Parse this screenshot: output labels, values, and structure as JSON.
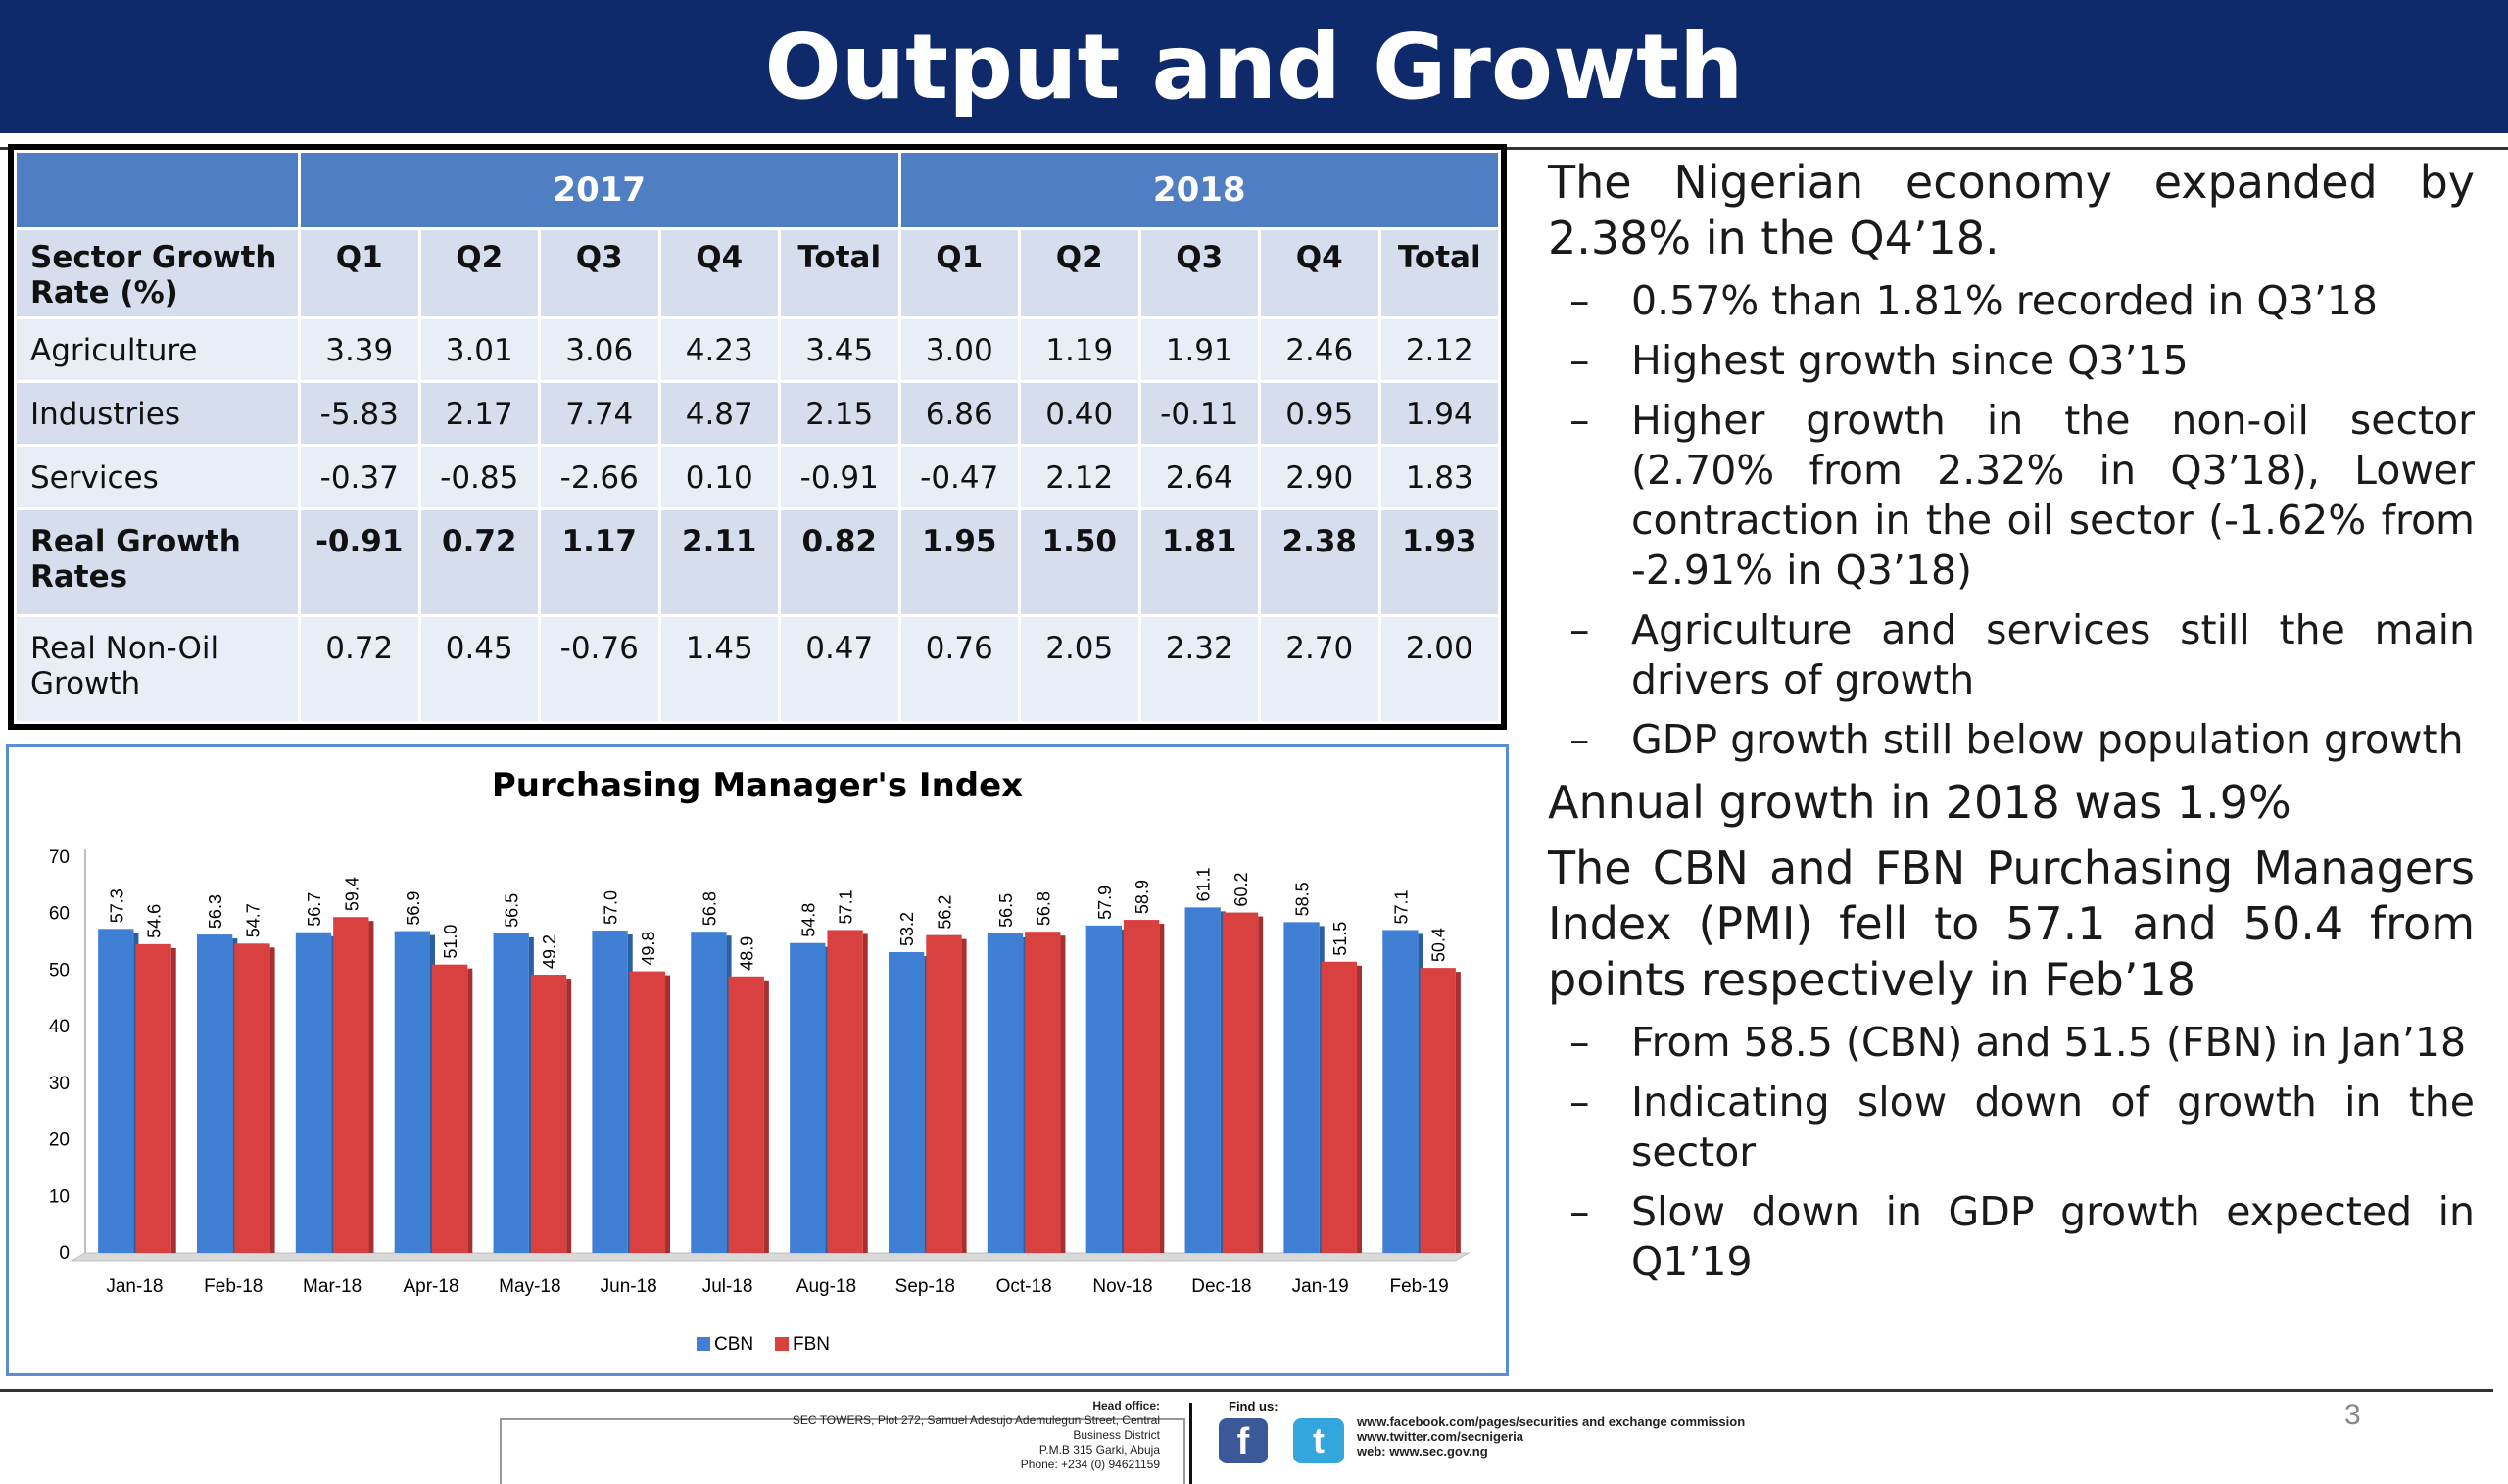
{
  "slide": {
    "title": "Output and Growth",
    "page_number": "3"
  },
  "table": {
    "year_headers": [
      "2017",
      "2018"
    ],
    "column_headers": [
      "Sector Growth Rate (%)",
      "Q1",
      "Q2",
      "Q3",
      "Q4",
      "Total",
      "Q1",
      "Q2",
      "Q3",
      "Q4",
      "Total"
    ],
    "rows": [
      {
        "label": "Agriculture",
        "bold": false,
        "values": [
          "3.39",
          "3.01",
          "3.06",
          "4.23",
          "3.45",
          "3.00",
          "1.19",
          "1.91",
          "2.46",
          "2.12"
        ]
      },
      {
        "label": "Industries",
        "bold": false,
        "values": [
          "-5.83",
          "2.17",
          "7.74",
          "4.87",
          "2.15",
          "6.86",
          "0.40",
          "-0.11",
          "0.95",
          "1.94"
        ]
      },
      {
        "label": "Services",
        "bold": false,
        "values": [
          "-0.37",
          "-0.85",
          "-2.66",
          "0.10",
          "-0.91",
          "-0.47",
          "2.12",
          "2.64",
          "2.90",
          "1.83"
        ]
      },
      {
        "label": "Real Growth Rates",
        "bold": true,
        "values": [
          "-0.91",
          "0.72",
          "1.17",
          "2.11",
          "0.82",
          "1.95",
          "1.50",
          "1.81",
          "2.38",
          "1.93"
        ]
      },
      {
        "label": "Real Non-Oil Growth",
        "bold": false,
        "values": [
          "0.72",
          "0.45",
          "-0.76",
          "1.45",
          "0.47",
          "0.76",
          "2.05",
          "2.32",
          "2.70",
          "2.00"
        ]
      }
    ]
  },
  "chart_data": {
    "type": "bar",
    "title": "Purchasing Manager's Index",
    "categories": [
      "Jan-18",
      "Feb-18",
      "Mar-18",
      "Apr-18",
      "May-18",
      "Jun-18",
      "Jul-18",
      "Aug-18",
      "Sep-18",
      "Oct-18",
      "Nov-18",
      "Dec-18",
      "Jan-19",
      "Feb-19"
    ],
    "series": [
      {
        "name": "CBN",
        "color": "#3f7fd4",
        "values": [
          57.3,
          56.3,
          56.7,
          56.9,
          56.5,
          57.0,
          56.8,
          54.8,
          53.2,
          56.5,
          57.9,
          61.1,
          58.5,
          57.1
        ],
        "labels": [
          "57.3",
          "56.3",
          "56.7",
          "56.9",
          "56.5",
          "57.0",
          "56.8",
          "54.8",
          "53.2",
          "56.5",
          "57.9",
          "61.1",
          "58.5",
          "57.1"
        ]
      },
      {
        "name": "FBN",
        "color": "#d94141",
        "values": [
          54.6,
          54.7,
          59.4,
          51.0,
          49.2,
          49.8,
          48.9,
          57.1,
          56.2,
          56.8,
          58.9,
          60.2,
          51.5,
          50.4
        ],
        "labels": [
          "54.6",
          "54.7",
          "59.4",
          "51.0",
          "49.2",
          "49.8",
          "48.9",
          "57.1",
          "56.2",
          "56.8",
          "58.9",
          "60.2",
          "51.5",
          "50.4"
        ]
      }
    ],
    "ylim": [
      0,
      70
    ],
    "yticks": [
      "0",
      "10",
      "20",
      "30",
      "40",
      "50",
      "60",
      "70"
    ],
    "grid": false,
    "legend": "bottom"
  },
  "commentary": [
    {
      "level": 0,
      "text": "The Nigerian economy expanded by 2.38% in the Q4’18."
    },
    {
      "level": 1,
      "text": "0.57% than 1.81% recorded in Q3’18"
    },
    {
      "level": 1,
      "text": "Highest growth since Q3’15"
    },
    {
      "level": 1,
      "text": "Higher growth in the non-oil sector (2.70% from 2.32% in Q3’18), Lower contraction in the oil sector (-1.62% from -2.91% in Q3’18)"
    },
    {
      "level": 1,
      "text": "Agriculture and services still the main drivers of growth"
    },
    {
      "level": 1,
      "text": "GDP growth still below population growth"
    },
    {
      "level": 0,
      "text": "Annual growth in 2018 was 1.9%"
    },
    {
      "level": 0,
      "text": "The CBN and FBN Purchasing Managers Index (PMI) fell to 57.1 and 50.4 from points respectively in Feb’18"
    },
    {
      "level": 1,
      "text": "From 58.5 (CBN) and 51.5 (FBN) in Jan’18"
    },
    {
      "level": 1,
      "text": "Indicating slow down of growth in the sector"
    },
    {
      "level": 1,
      "text": "Slow down in GDP growth expected in Q1’19"
    }
  ],
  "footer": {
    "head_office_label": "Head office:",
    "address_lines": [
      "SEC TOWERS, Plot 272, Samuel Adesujo Ademulegun Street, Central",
      "Business District",
      "P.M.B 315 Garki, Abuja",
      "Phone: +234 (0) 94621159"
    ],
    "find_us_label": "Find us:",
    "facebook_glyph": "f",
    "twitter_glyph": "t",
    "links": [
      "www.facebook.com/pages/securities and exchange commission",
      "www.twitter.com/secnigeria",
      "web: www.sec.gov.ng"
    ]
  },
  "bullet_dash": "–"
}
